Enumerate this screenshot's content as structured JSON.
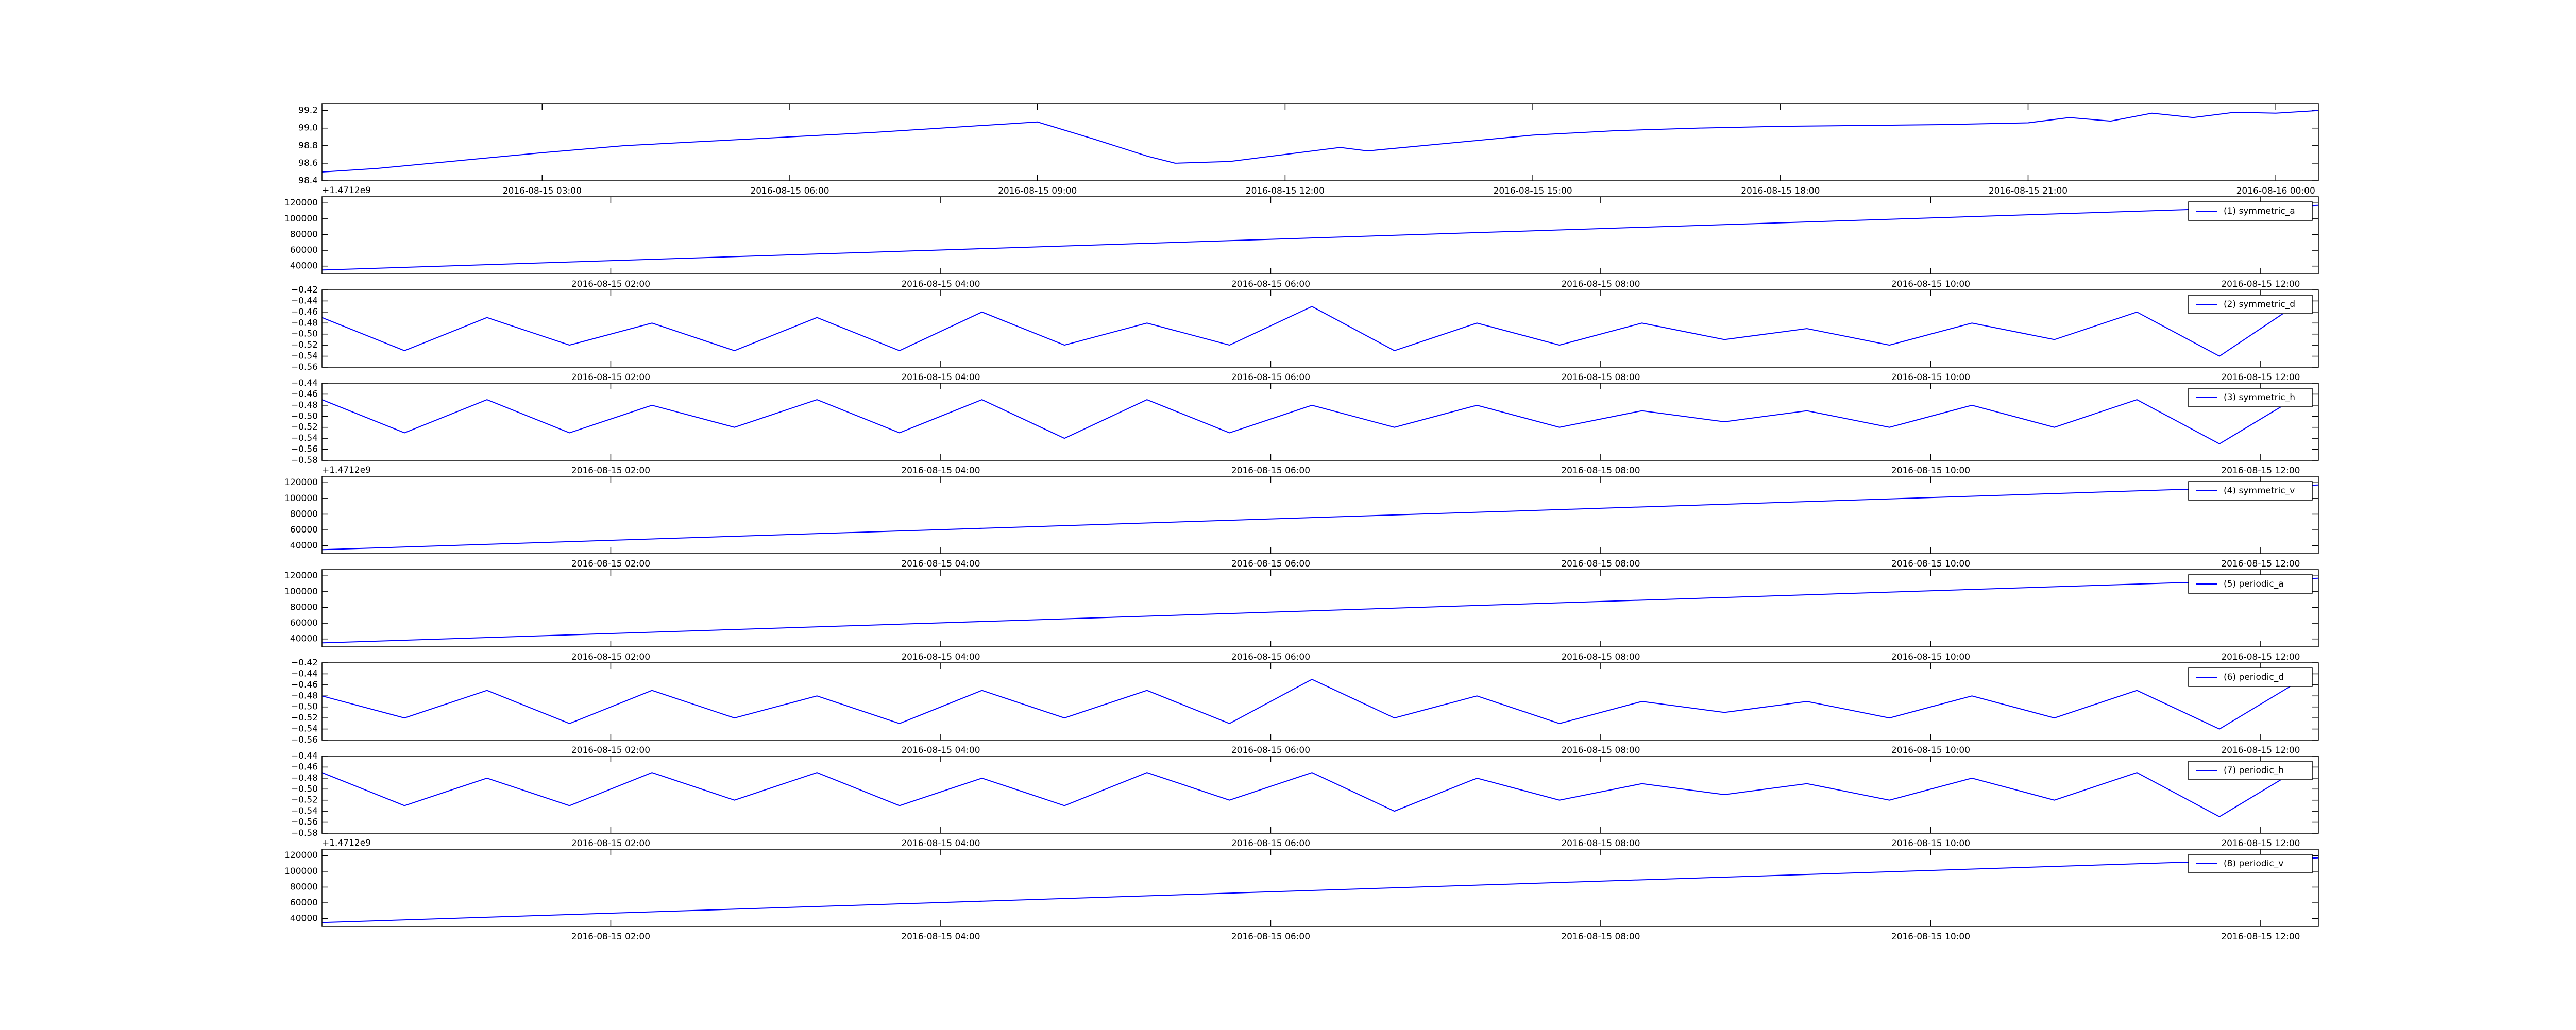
{
  "chart_data": [
    {
      "type": "line",
      "color": "#0000ff",
      "x": [
        "2016-08-15 00:20",
        "2016-08-15 01:00",
        "2016-08-15 02:00",
        "2016-08-15 03:00",
        "2016-08-15 04:00",
        "2016-08-15 05:00",
        "2016-08-15 06:00",
        "2016-08-15 07:00",
        "2016-08-15 08:00",
        "2016-08-15 08:40",
        "2016-08-15 09:00",
        "2016-08-15 09:40",
        "2016-08-15 10:20",
        "2016-08-15 10:40",
        "2016-08-15 11:20",
        "2016-08-15 12:00",
        "2016-08-15 12:40",
        "2016-08-15 13:00",
        "2016-08-15 14:00",
        "2016-08-15 15:00",
        "2016-08-15 16:00",
        "2016-08-15 17:00",
        "2016-08-15 18:00",
        "2016-08-15 19:00",
        "2016-08-15 20:00",
        "2016-08-15 21:00",
        "2016-08-15 21:30",
        "2016-08-15 22:00",
        "2016-08-15 22:30",
        "2016-08-15 23:00",
        "2016-08-15 23:30",
        "2016-08-16 00:00",
        "2016-08-16 00:31"
      ],
      "values": [
        98.5,
        98.54,
        98.63,
        98.72,
        98.8,
        98.85,
        98.9,
        98.95,
        99.01,
        99.05,
        99.07,
        98.88,
        98.68,
        98.6,
        98.62,
        98.7,
        98.78,
        98.74,
        98.83,
        98.92,
        98.97,
        99.0,
        99.02,
        99.03,
        99.04,
        99.06,
        99.12,
        99.08,
        99.17,
        99.12,
        99.18,
        99.17,
        99.2
      ],
      "xlim": [
        "2016-08-15 00:20",
        "2016-08-16 00:31"
      ],
      "xticks": [
        "2016-08-15 03:00",
        "2016-08-15 06:00",
        "2016-08-15 09:00",
        "2016-08-15 12:00",
        "2016-08-15 15:00",
        "2016-08-15 18:00",
        "2016-08-15 21:00",
        "2016-08-16 00:00"
      ],
      "ylim": [
        98.4,
        99.28
      ],
      "yticks": [
        98.4,
        98.6,
        98.8,
        {
          "value": 99,
          "label": "99.0"
        },
        99.2
      ]
    },
    {
      "type": "line",
      "y_offset_text": "+1.4712e9",
      "legend": "upper right",
      "x": [
        "2016-08-15 00:15",
        "2016-08-15 12:21"
      ],
      "series": [
        {
          "name": "(1) symmetric_a",
          "color": "#0000ff",
          "values": [
            35000,
            117000
          ]
        }
      ],
      "xlim": [
        "2016-08-15 00:15",
        "2016-08-15 12:21"
      ],
      "xticks": [
        "2016-08-15 02:00",
        "2016-08-15 04:00",
        "2016-08-15 06:00",
        "2016-08-15 08:00",
        "2016-08-15 10:00",
        "2016-08-15 12:00"
      ],
      "ylim": [
        30000,
        128000
      ],
      "yticks": [
        40000,
        60000,
        80000,
        100000,
        120000
      ]
    },
    {
      "type": "line",
      "legend": "upper right",
      "x": [
        "2016-08-15 00:15",
        "2016-08-15 00:45",
        "2016-08-15 01:15",
        "2016-08-15 01:45",
        "2016-08-15 02:15",
        "2016-08-15 02:45",
        "2016-08-15 03:15",
        "2016-08-15 03:45",
        "2016-08-15 04:15",
        "2016-08-15 04:45",
        "2016-08-15 05:15",
        "2016-08-15 05:45",
        "2016-08-15 06:15",
        "2016-08-15 06:45",
        "2016-08-15 07:15",
        "2016-08-15 07:45",
        "2016-08-15 08:15",
        "2016-08-15 08:45",
        "2016-08-15 09:15",
        "2016-08-15 09:45",
        "2016-08-15 10:15",
        "2016-08-15 10:45",
        "2016-08-15 11:15",
        "2016-08-15 11:45",
        "2016-08-15 12:15"
      ],
      "series": [
        {
          "name": "(2) symmetric_d",
          "color": "#0000ff",
          "values": [
            -0.47,
            -0.53,
            -0.47,
            -0.52,
            -0.48,
            -0.53,
            -0.47,
            -0.53,
            -0.46,
            -0.52,
            -0.48,
            -0.52,
            -0.45,
            -0.53,
            -0.48,
            -0.52,
            -0.48,
            -0.51,
            -0.49,
            -0.52,
            -0.48,
            -0.51,
            -0.46,
            -0.54,
            -0.44
          ]
        }
      ],
      "xlim": [
        "2016-08-15 00:15",
        "2016-08-15 12:21"
      ],
      "xticks": [
        "2016-08-15 02:00",
        "2016-08-15 04:00",
        "2016-08-15 06:00",
        "2016-08-15 08:00",
        "2016-08-15 10:00",
        "2016-08-15 12:00"
      ],
      "ylim": [
        -0.56,
        -0.42
      ],
      "yticks": [
        {
          "value": -0.56,
          "label": "−0.56"
        },
        {
          "value": -0.54,
          "label": "−0.54"
        },
        {
          "value": -0.52,
          "label": "−0.52"
        },
        {
          "value": -0.5,
          "label": "−0.50"
        },
        {
          "value": -0.48,
          "label": "−0.48"
        },
        {
          "value": -0.46,
          "label": "−0.46"
        },
        {
          "value": -0.44,
          "label": "−0.44"
        },
        {
          "value": -0.42,
          "label": "−0.42"
        }
      ]
    },
    {
      "type": "line",
      "legend": "upper right",
      "x": [
        "2016-08-15 00:15",
        "2016-08-15 00:45",
        "2016-08-15 01:15",
        "2016-08-15 01:45",
        "2016-08-15 02:15",
        "2016-08-15 02:45",
        "2016-08-15 03:15",
        "2016-08-15 03:45",
        "2016-08-15 04:15",
        "2016-08-15 04:45",
        "2016-08-15 05:15",
        "2016-08-15 05:45",
        "2016-08-15 06:15",
        "2016-08-15 06:45",
        "2016-08-15 07:15",
        "2016-08-15 07:45",
        "2016-08-15 08:15",
        "2016-08-15 08:45",
        "2016-08-15 09:15",
        "2016-08-15 09:45",
        "2016-08-15 10:15",
        "2016-08-15 10:45",
        "2016-08-15 11:15",
        "2016-08-15 11:45",
        "2016-08-15 12:15"
      ],
      "series": [
        {
          "name": "(3) symmetric_h",
          "color": "#0000ff",
          "values": [
            -0.47,
            -0.53,
            -0.47,
            -0.53,
            -0.48,
            -0.52,
            -0.47,
            -0.53,
            -0.47,
            -0.54,
            -0.47,
            -0.53,
            -0.48,
            -0.52,
            -0.48,
            -0.52,
            -0.49,
            -0.51,
            -0.49,
            -0.52,
            -0.48,
            -0.52,
            -0.47,
            -0.55,
            -0.46
          ]
        }
      ],
      "xlim": [
        "2016-08-15 00:15",
        "2016-08-15 12:21"
      ],
      "xticks": [
        "2016-08-15 02:00",
        "2016-08-15 04:00",
        "2016-08-15 06:00",
        "2016-08-15 08:00",
        "2016-08-15 10:00",
        "2016-08-15 12:00"
      ],
      "ylim": [
        -0.58,
        -0.44
      ],
      "yticks": [
        {
          "value": -0.58,
          "label": "−0.58"
        },
        {
          "value": -0.56,
          "label": "−0.56"
        },
        {
          "value": -0.54,
          "label": "−0.54"
        },
        {
          "value": -0.52,
          "label": "−0.52"
        },
        {
          "value": -0.5,
          "label": "−0.50"
        },
        {
          "value": -0.48,
          "label": "−0.48"
        },
        {
          "value": -0.46,
          "label": "−0.46"
        },
        {
          "value": -0.44,
          "label": "−0.44"
        }
      ]
    },
    {
      "type": "line",
      "y_offset_text": "+1.4712e9",
      "legend": "upper right",
      "x": [
        "2016-08-15 00:15",
        "2016-08-15 12:21"
      ],
      "series": [
        {
          "name": "(4) symmetric_v",
          "color": "#0000ff",
          "values": [
            35000,
            117000
          ]
        }
      ],
      "xlim": [
        "2016-08-15 00:15",
        "2016-08-15 12:21"
      ],
      "xticks": [
        "2016-08-15 02:00",
        "2016-08-15 04:00",
        "2016-08-15 06:00",
        "2016-08-15 08:00",
        "2016-08-15 10:00",
        "2016-08-15 12:00"
      ],
      "ylim": [
        30000,
        128000
      ],
      "yticks": [
        40000,
        60000,
        80000,
        100000,
        120000
      ]
    },
    {
      "type": "line",
      "legend": "upper right",
      "x": [
        "2016-08-15 00:15",
        "2016-08-15 12:21"
      ],
      "series": [
        {
          "name": "(5) periodic_a",
          "color": "#0000ff",
          "values": [
            35000,
            117000
          ]
        }
      ],
      "xlim": [
        "2016-08-15 00:15",
        "2016-08-15 12:21"
      ],
      "xticks": [
        "2016-08-15 02:00",
        "2016-08-15 04:00",
        "2016-08-15 06:00",
        "2016-08-15 08:00",
        "2016-08-15 10:00",
        "2016-08-15 12:00"
      ],
      "ylim": [
        30000,
        128000
      ],
      "yticks": [
        40000,
        60000,
        80000,
        100000,
        120000
      ]
    },
    {
      "type": "line",
      "legend": "upper right",
      "x": [
        "2016-08-15 00:15",
        "2016-08-15 00:45",
        "2016-08-15 01:15",
        "2016-08-15 01:45",
        "2016-08-15 02:15",
        "2016-08-15 02:45",
        "2016-08-15 03:15",
        "2016-08-15 03:45",
        "2016-08-15 04:15",
        "2016-08-15 04:45",
        "2016-08-15 05:15",
        "2016-08-15 05:45",
        "2016-08-15 06:15",
        "2016-08-15 06:45",
        "2016-08-15 07:15",
        "2016-08-15 07:45",
        "2016-08-15 08:15",
        "2016-08-15 08:45",
        "2016-08-15 09:15",
        "2016-08-15 09:45",
        "2016-08-15 10:15",
        "2016-08-15 10:45",
        "2016-08-15 11:15",
        "2016-08-15 11:45",
        "2016-08-15 12:15"
      ],
      "series": [
        {
          "name": "(6) periodic_d",
          "color": "#0000ff",
          "values": [
            -0.48,
            -0.52,
            -0.47,
            -0.53,
            -0.47,
            -0.52,
            -0.48,
            -0.53,
            -0.47,
            -0.52,
            -0.47,
            -0.53,
            -0.45,
            -0.52,
            -0.48,
            -0.53,
            -0.49,
            -0.51,
            -0.49,
            -0.52,
            -0.48,
            -0.52,
            -0.47,
            -0.54,
            -0.45
          ]
        }
      ],
      "xlim": [
        "2016-08-15 00:15",
        "2016-08-15 12:21"
      ],
      "xticks": [
        "2016-08-15 02:00",
        "2016-08-15 04:00",
        "2016-08-15 06:00",
        "2016-08-15 08:00",
        "2016-08-15 10:00",
        "2016-08-15 12:00"
      ],
      "ylim": [
        -0.56,
        -0.42
      ],
      "yticks": [
        {
          "value": -0.56,
          "label": "−0.56"
        },
        {
          "value": -0.54,
          "label": "−0.54"
        },
        {
          "value": -0.52,
          "label": "−0.52"
        },
        {
          "value": -0.5,
          "label": "−0.50"
        },
        {
          "value": -0.48,
          "label": "−0.48"
        },
        {
          "value": -0.46,
          "label": "−0.46"
        },
        {
          "value": -0.44,
          "label": "−0.44"
        },
        {
          "value": -0.42,
          "label": "−0.42"
        }
      ]
    },
    {
      "type": "line",
      "legend": "upper right",
      "x": [
        "2016-08-15 00:15",
        "2016-08-15 00:45",
        "2016-08-15 01:15",
        "2016-08-15 01:45",
        "2016-08-15 02:15",
        "2016-08-15 02:45",
        "2016-08-15 03:15",
        "2016-08-15 03:45",
        "2016-08-15 04:15",
        "2016-08-15 04:45",
        "2016-08-15 05:15",
        "2016-08-15 05:45",
        "2016-08-15 06:15",
        "2016-08-15 06:45",
        "2016-08-15 07:15",
        "2016-08-15 07:45",
        "2016-08-15 08:15",
        "2016-08-15 08:45",
        "2016-08-15 09:15",
        "2016-08-15 09:45",
        "2016-08-15 10:15",
        "2016-08-15 10:45",
        "2016-08-15 11:15",
        "2016-08-15 11:45",
        "2016-08-15 12:15"
      ],
      "series": [
        {
          "name": "(7) periodic_h",
          "color": "#0000ff",
          "values": [
            -0.47,
            -0.53,
            -0.48,
            -0.53,
            -0.47,
            -0.52,
            -0.47,
            -0.53,
            -0.48,
            -0.53,
            -0.47,
            -0.52,
            -0.47,
            -0.54,
            -0.48,
            -0.52,
            -0.49,
            -0.51,
            -0.49,
            -0.52,
            -0.48,
            -0.52,
            -0.47,
            -0.55,
            -0.46
          ]
        }
      ],
      "xlim": [
        "2016-08-15 00:15",
        "2016-08-15 12:21"
      ],
      "xticks": [
        "2016-08-15 02:00",
        "2016-08-15 04:00",
        "2016-08-15 06:00",
        "2016-08-15 08:00",
        "2016-08-15 10:00",
        "2016-08-15 12:00"
      ],
      "ylim": [
        -0.58,
        -0.44
      ],
      "yticks": [
        {
          "value": -0.58,
          "label": "−0.58"
        },
        {
          "value": -0.56,
          "label": "−0.56"
        },
        {
          "value": -0.54,
          "label": "−0.54"
        },
        {
          "value": -0.52,
          "label": "−0.52"
        },
        {
          "value": -0.5,
          "label": "−0.50"
        },
        {
          "value": -0.48,
          "label": "−0.48"
        },
        {
          "value": -0.46,
          "label": "−0.46"
        },
        {
          "value": -0.44,
          "label": "−0.44"
        }
      ]
    },
    {
      "type": "line",
      "y_offset_text": "+1.4712e9",
      "legend": "upper right",
      "x": [
        "2016-08-15 00:15",
        "2016-08-15 12:21"
      ],
      "series": [
        {
          "name": "(8) periodic_v",
          "color": "#0000ff",
          "values": [
            35000,
            117000
          ]
        }
      ],
      "xlim": [
        "2016-08-15 00:15",
        "2016-08-15 12:21"
      ],
      "xticks": [
        "2016-08-15 02:00",
        "2016-08-15 04:00",
        "2016-08-15 06:00",
        "2016-08-15 08:00",
        "2016-08-15 10:00",
        "2016-08-15 12:00"
      ],
      "ylim": [
        30000,
        128000
      ],
      "yticks": [
        40000,
        60000,
        80000,
        100000,
        120000
      ]
    }
  ]
}
